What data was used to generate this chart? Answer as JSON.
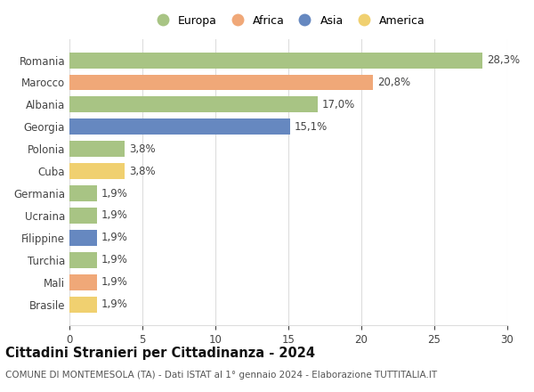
{
  "categories": [
    "Brasile",
    "Mali",
    "Turchia",
    "Filippine",
    "Ucraina",
    "Germania",
    "Cuba",
    "Polonia",
    "Georgia",
    "Albania",
    "Marocco",
    "Romania"
  ],
  "values": [
    1.9,
    1.9,
    1.9,
    1.9,
    1.9,
    1.9,
    3.8,
    3.8,
    15.1,
    17.0,
    20.8,
    28.3
  ],
  "labels": [
    "1,9%",
    "1,9%",
    "1,9%",
    "1,9%",
    "1,9%",
    "1,9%",
    "3,8%",
    "3,8%",
    "15,1%",
    "17,0%",
    "20,8%",
    "28,3%"
  ],
  "continents": [
    "America",
    "Africa",
    "Europa",
    "Asia",
    "Europa",
    "Europa",
    "America",
    "Europa",
    "Asia",
    "Europa",
    "Africa",
    "Europa"
  ],
  "continent_colors": {
    "Europa": "#a8c484",
    "Africa": "#f0a878",
    "Asia": "#6688c0",
    "America": "#f0d070"
  },
  "legend_items": [
    "Europa",
    "Africa",
    "Asia",
    "America"
  ],
  "legend_colors": [
    "#a8c484",
    "#f0a878",
    "#6688c0",
    "#f0d070"
  ],
  "title": "Cittadini Stranieri per Cittadinanza - 2024",
  "subtitle": "COMUNE DI MONTEMESOLA (TA) - Dati ISTAT al 1° gennaio 2024 - Elaborazione TUTTITALIA.IT",
  "xlim": [
    0,
    30
  ],
  "xticks": [
    0,
    5,
    10,
    15,
    20,
    25,
    30
  ],
  "background_color": "#ffffff",
  "grid_color": "#dddddd",
  "bar_height": 0.72,
  "label_fontsize": 8.5,
  "tick_fontsize": 8.5,
  "title_fontsize": 10.5,
  "subtitle_fontsize": 7.5
}
